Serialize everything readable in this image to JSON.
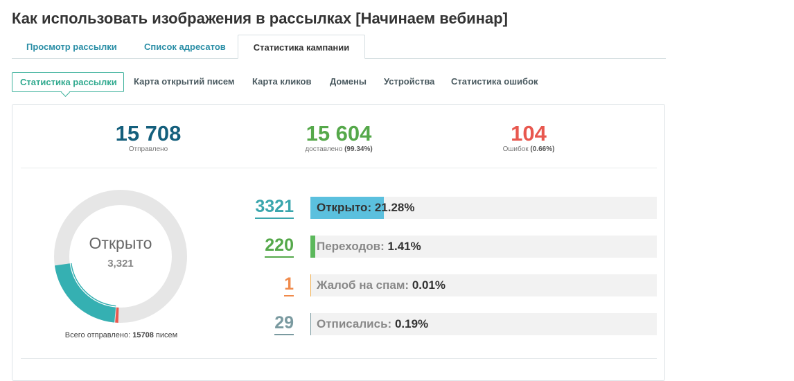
{
  "page": {
    "title": "Как использовать изображения в рассылках [Начинаем вебинар]"
  },
  "tabs": [
    {
      "label": "Просмотр рассылки",
      "active": false
    },
    {
      "label": "Список адресатов",
      "active": false
    },
    {
      "label": "Статистика кампании",
      "active": true
    }
  ],
  "subtabs": [
    {
      "label": "Статистика рассылки",
      "active": true
    },
    {
      "label": "Карта открытий писем",
      "active": false
    },
    {
      "label": "Карта кликов",
      "active": false
    },
    {
      "label": "Домены",
      "active": false
    },
    {
      "label": "Устройства",
      "active": false
    },
    {
      "label": "Статистика ошибок",
      "active": false
    }
  ],
  "summary": {
    "sent": {
      "value": "15 708",
      "label": "Отправлено",
      "color": "#145f7c"
    },
    "delivered": {
      "value": "15 604",
      "label": "доставлено",
      "pct": "(99.34%)",
      "color": "#55a84a"
    },
    "errors": {
      "value": "104",
      "label": "Ошибок",
      "pct": "(0.66%)",
      "color": "#e8584f"
    }
  },
  "donut": {
    "label": "Открыто",
    "value": "3,321",
    "open_fraction": 0.2128,
    "error_fraction": 0.0066,
    "colors": {
      "track": "#e6e6e6",
      "open": "#35b0b2",
      "error": "#e8584f"
    }
  },
  "total": {
    "prefix": "Всего отправлено:",
    "count": "15708",
    "suffix": "писем"
  },
  "metrics": [
    {
      "num": "3321",
      "label": "Открыто:",
      "value": "21.28%",
      "fraction": 0.2128,
      "color": "#5bc0de",
      "num_color": "#3aa6ad"
    },
    {
      "num": "220",
      "label": "Переходов:",
      "value": "1.41%",
      "fraction": 0.0141,
      "color": "#5cb85c",
      "num_color": "#55a84a"
    },
    {
      "num": "1",
      "label": "Жалоб на спам:",
      "value": "0.01%",
      "fraction": 0.0001,
      "color": "#f0ad4e",
      "num_color": "#f08a4b"
    },
    {
      "num": "29",
      "label": "Отписались:",
      "value": "0.19%",
      "fraction": 0.0019,
      "color": "#7a9aa0",
      "num_color": "#7a9aa0"
    }
  ]
}
